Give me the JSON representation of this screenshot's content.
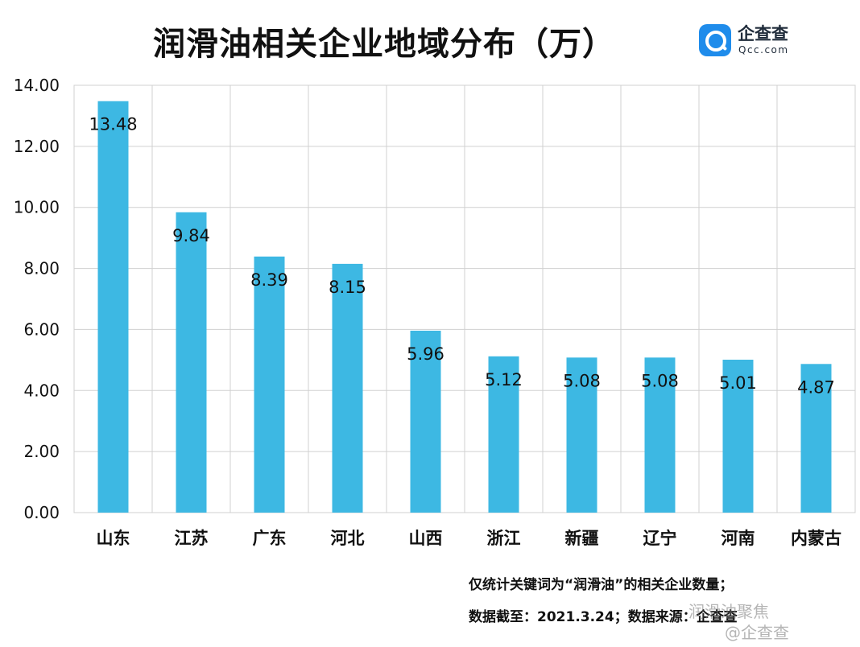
{
  "chart_data": {
    "type": "bar",
    "title": "润滑油相关企业地域分布（万）",
    "categories": [
      "山东",
      "江苏",
      "广东",
      "河北",
      "山西",
      "浙江",
      "新疆",
      "辽宁",
      "河南",
      "内蒙古"
    ],
    "values": [
      13.48,
      9.84,
      8.39,
      8.15,
      5.96,
      5.12,
      5.08,
      5.08,
      5.01,
      4.87
    ],
    "value_labels": [
      "13.48",
      "9.84",
      "8.39",
      "8.15",
      "5.96",
      "5.12",
      "5.08",
      "5.08",
      "5.01",
      "4.87"
    ],
    "yticks": [
      0,
      2,
      4,
      6,
      8,
      10,
      12,
      14
    ],
    "ytick_labels": [
      "0.00",
      "2.00",
      "4.00",
      "6.00",
      "8.00",
      "10.00",
      "12.00",
      "14.00"
    ],
    "ylim": [
      0,
      14
    ],
    "grid": true,
    "bar_color": "#3db8e3"
  },
  "logo": {
    "name": "企查查",
    "domain": "Qcc.com"
  },
  "footer": {
    "note_1": "仅统计关键词为“润滑油”的相关企业数量；",
    "note_2": "数据截至：2021.3.24；数据来源：企查查"
  },
  "watermark": {
    "line_1": "润滑油聚焦",
    "line_2": "@企查查"
  }
}
